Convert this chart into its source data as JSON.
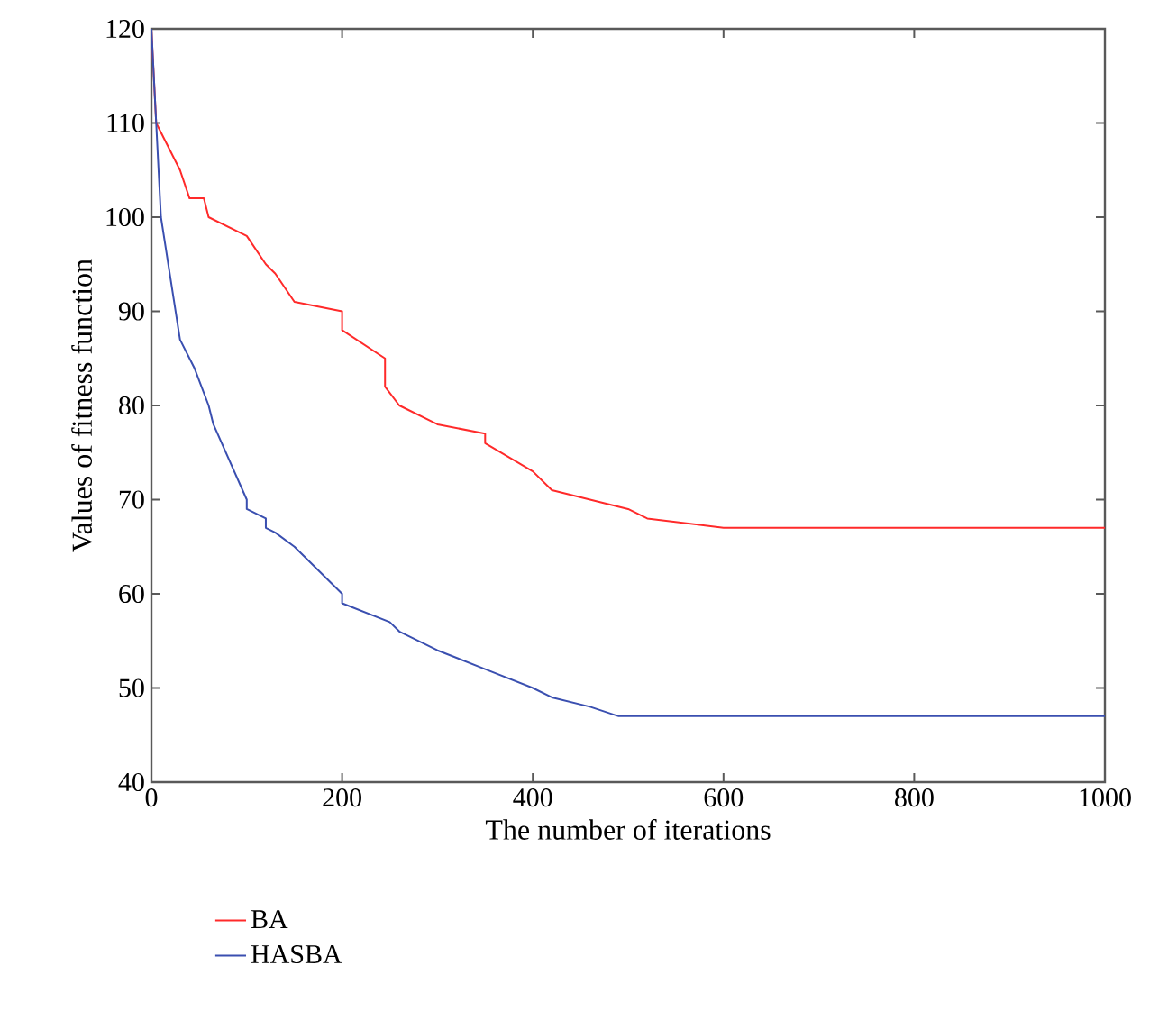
{
  "chart_data": {
    "type": "line",
    "xlabel": "The number of iterations",
    "ylabel": "Values of fitness function",
    "xlim": [
      0,
      1000
    ],
    "ylim": [
      40,
      120
    ],
    "xticks": [
      0,
      200,
      400,
      600,
      800,
      1000
    ],
    "yticks": [
      40,
      50,
      60,
      70,
      80,
      90,
      100,
      110,
      120
    ],
    "grid": false,
    "legend": "bottom left",
    "marker": "none",
    "line_style": "solid",
    "series": [
      {
        "name": "BA",
        "color": "#ff2a2a",
        "x": [
          0,
          5,
          30,
          40,
          55,
          60,
          100,
          120,
          130,
          150,
          200,
          200,
          245,
          245,
          260,
          300,
          350,
          350,
          400,
          420,
          480,
          500,
          520,
          600,
          1000
        ],
        "values": [
          120,
          110,
          105,
          102,
          102,
          100,
          98,
          95,
          94,
          91,
          90,
          88,
          85,
          82,
          80,
          78,
          77,
          76,
          73,
          71,
          69.5,
          69,
          68,
          67,
          67
        ]
      },
      {
        "name": "HASBA",
        "color": "#3a4fb0",
        "x": [
          0,
          10,
          30,
          45,
          60,
          65,
          100,
          100,
          120,
          120,
          130,
          150,
          200,
          200,
          250,
          260,
          300,
          350,
          400,
          420,
          460,
          490,
          1000
        ],
        "values": [
          120,
          100,
          87,
          84,
          80,
          78,
          70,
          69,
          68,
          67,
          66.5,
          65,
          60,
          59,
          57,
          56,
          54,
          52,
          50,
          49,
          48,
          47,
          47
        ]
      }
    ]
  }
}
